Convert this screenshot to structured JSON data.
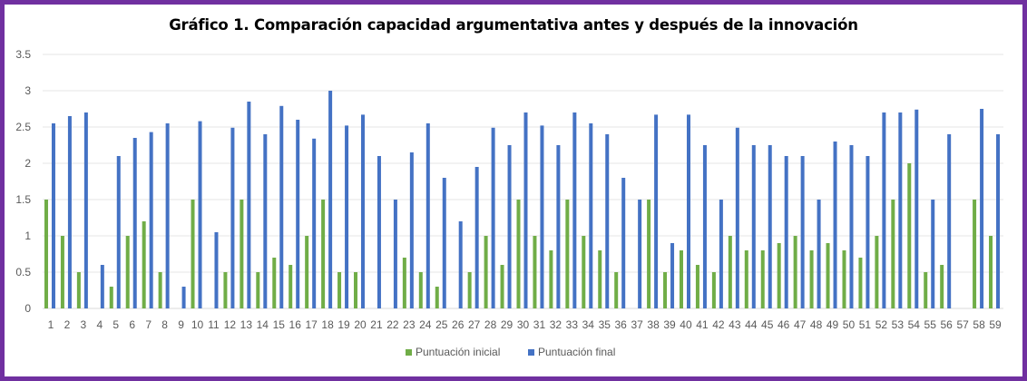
{
  "chart_data": {
    "type": "bar",
    "title": "Gráfico 1. Comparación capacidad argumentativa antes y después de la innovación",
    "xlabel": "",
    "ylabel": "",
    "ylim": [
      0,
      3.5
    ],
    "yticks": [
      "0",
      "0.5",
      "1",
      "1.5",
      "2",
      "2.5",
      "3",
      "3.5"
    ],
    "grid": true,
    "legend_position": "bottom",
    "categories": [
      "1",
      "2",
      "3",
      "4",
      "5",
      "6",
      "7",
      "8",
      "9",
      "10",
      "11",
      "12",
      "13",
      "14",
      "15",
      "16",
      "17",
      "18",
      "19",
      "20",
      "21",
      "22",
      "23",
      "24",
      "25",
      "26",
      "27",
      "28",
      "29",
      "30",
      "31",
      "32",
      "33",
      "34",
      "35",
      "36",
      "37",
      "38",
      "39",
      "40",
      "41",
      "42",
      "43",
      "44",
      "45",
      "46",
      "47",
      "48",
      "49",
      "50",
      "51",
      "52",
      "53",
      "54",
      "55",
      "56",
      "57",
      "58",
      "59"
    ],
    "series": [
      {
        "name": "Puntuación inicial",
        "color": "#70ad47",
        "values": [
          1.5,
          1,
          0.5,
          0,
          0.3,
          1,
          1.2,
          0.5,
          0,
          1.5,
          0,
          0.5,
          1.5,
          0.5,
          0.7,
          0.6,
          1,
          1.5,
          0.5,
          0.5,
          0,
          0,
          0.7,
          0.5,
          0.3,
          0,
          0.5,
          1,
          0.6,
          1.5,
          1,
          0.8,
          1.5,
          1,
          0.8,
          0.5,
          0,
          1.5,
          0.5,
          0.8,
          0.6,
          0.5,
          1,
          0.8,
          0.8,
          0.9,
          1,
          0.8,
          0.9,
          0.8,
          0.7,
          1,
          1.5,
          2,
          0.5,
          0.6,
          0,
          1.5,
          1
        ]
      },
      {
        "name": "Puntuación final",
        "color": "#4472c4",
        "values": [
          2.55,
          2.65,
          2.7,
          0.6,
          2.1,
          2.35,
          2.43,
          2.55,
          0.3,
          2.58,
          1.05,
          2.49,
          2.85,
          2.4,
          2.79,
          2.6,
          2.34,
          3,
          2.52,
          2.67,
          2.1,
          1.5,
          2.15,
          2.55,
          1.8,
          1.2,
          1.95,
          2.49,
          2.25,
          2.7,
          2.52,
          2.25,
          2.7,
          2.55,
          2.4,
          1.8,
          1.5,
          2.67,
          0.9,
          2.67,
          2.25,
          1.5,
          2.49,
          2.25,
          2.25,
          2.1,
          2.1,
          1.5,
          2.3,
          2.25,
          2.1,
          2.7,
          2.7,
          2.74,
          1.5,
          2.4,
          0,
          2.75,
          2.4
        ]
      }
    ]
  }
}
